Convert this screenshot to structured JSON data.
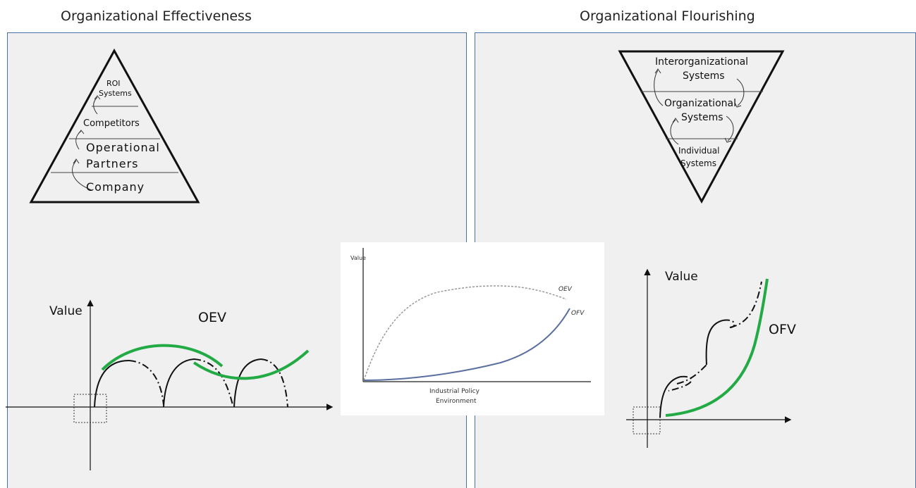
{
  "left": {
    "title": "Organizational Effectiveness",
    "pyramid": {
      "levels": [
        "ROI",
        "Systems",
        "Competitors",
        "Operational",
        "Partners",
        "Company"
      ]
    },
    "graph": {
      "ylabel": "Value",
      "curve_label": "OEV"
    }
  },
  "right": {
    "title": "Organizational Flourishing",
    "pyramid": {
      "levels": [
        "Interorganizational",
        "Systems",
        "Organizational",
        "Systems",
        "Individual",
        "Systems"
      ]
    },
    "graph": {
      "ylabel": "Value",
      "curve_label": "OFV"
    }
  },
  "center": {
    "ylabel": "Value",
    "xlabel_line1": "Industrial Policy",
    "xlabel_line2": "Environment",
    "series": [
      "OEV",
      "OFV"
    ]
  },
  "colors": {
    "green": "#22aa44",
    "frame": "#4a6fa5",
    "ofv_line": "#5a6fa0",
    "oev_line": "#999999"
  }
}
